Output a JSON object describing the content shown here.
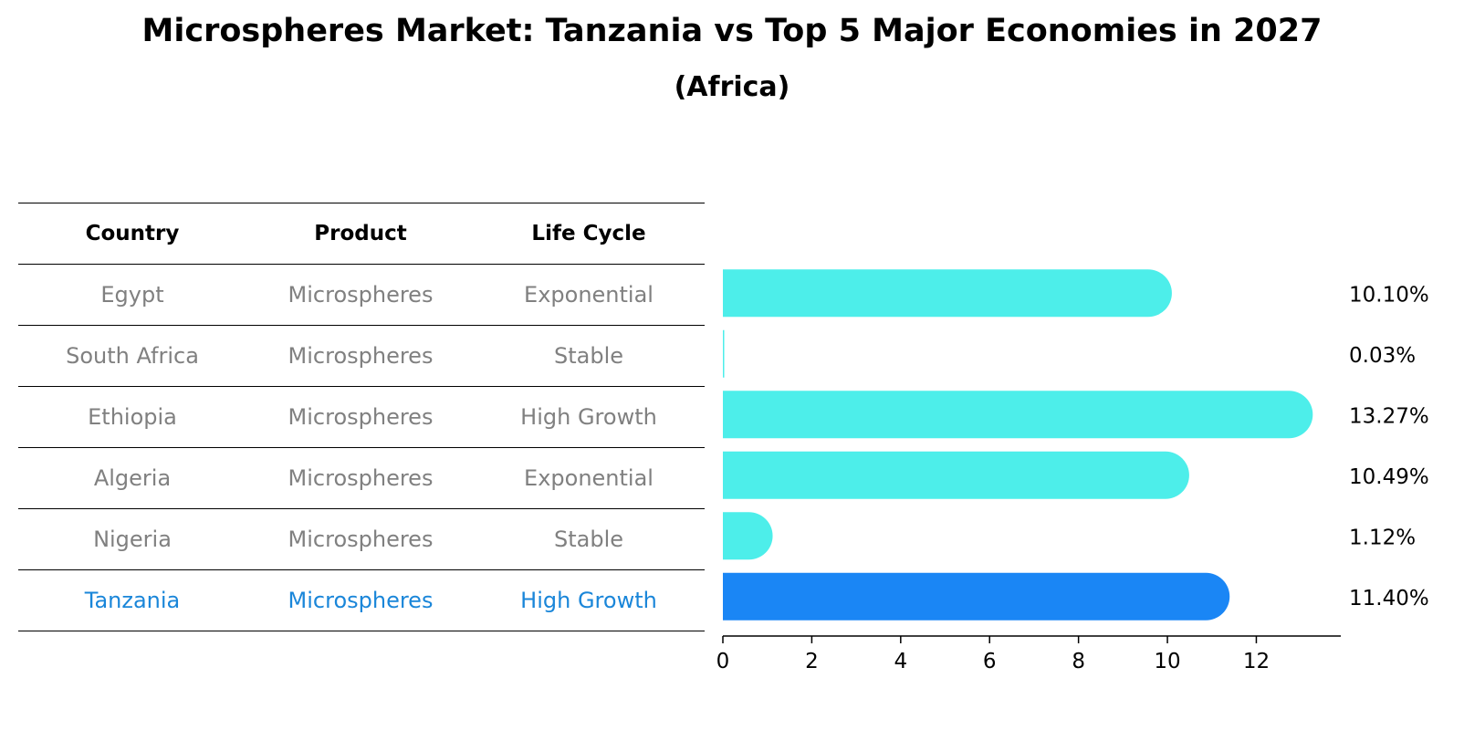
{
  "title": "Microspheres Market: Tanzania vs Top 5 Major Economies in 2027",
  "subtitle": "(Africa)",
  "table": {
    "headers": [
      "Country",
      "Product",
      "Life Cycle"
    ],
    "rows": [
      {
        "country": "Egypt",
        "product": "Microspheres",
        "life_cycle": "Exponential"
      },
      {
        "country": "South Africa",
        "product": "Microspheres",
        "life_cycle": "Stable"
      },
      {
        "country": "Ethiopia",
        "product": "Microspheres",
        "life_cycle": "High Growth"
      },
      {
        "country": "Algeria",
        "product": "Microspheres",
        "life_cycle": "Exponential"
      },
      {
        "country": "Nigeria",
        "product": "Microspheres",
        "life_cycle": "Stable"
      },
      {
        "country": "Tanzania",
        "product": "Microspheres",
        "life_cycle": "High Growth"
      }
    ]
  },
  "chart_data": {
    "type": "bar",
    "orientation": "horizontal",
    "categories": [
      "Egypt",
      "South Africa",
      "Ethiopia",
      "Algeria",
      "Nigeria",
      "Tanzania"
    ],
    "values": [
      10.1,
      0.03,
      13.27,
      10.49,
      1.12,
      11.4
    ],
    "value_labels": [
      "10.10%",
      "0.03%",
      "13.27%",
      "10.49%",
      "1.12%",
      "11.40%"
    ],
    "highlight": "Tanzania",
    "xlim": [
      0,
      13.9
    ],
    "xticks": [
      0,
      2,
      4,
      6,
      8,
      10,
      12
    ],
    "xlabel": "",
    "ylabel": "",
    "grid": false,
    "colors": {
      "default": "#4deeea",
      "highlight": "#1a86f5",
      "highlight_text": "#1a86d9"
    }
  }
}
